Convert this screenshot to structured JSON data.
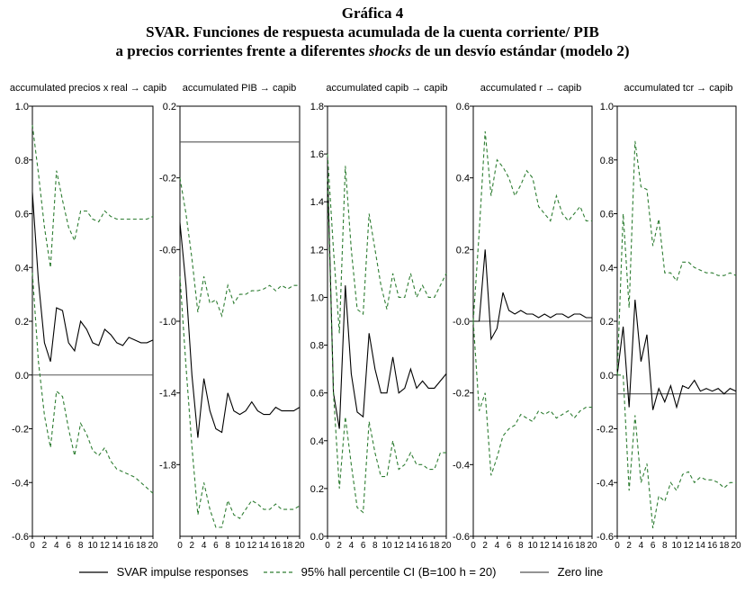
{
  "title": {
    "line1": "Gráfica 4",
    "line2": "SVAR. Funciones de respuesta acumulada de la cuenta corriente/ PIB",
    "line3_a": "a precios corrientes frente a diferentes ",
    "line3_italic": "shocks",
    "line3_b": " de un desvío estándar (modelo 2)"
  },
  "legend": {
    "irf": "SVAR impulse responses",
    "ci": "95%  hall percentile CI (B=100 h = 20)",
    "zero": "Zero line"
  },
  "colors": {
    "irf": "#000000",
    "ci": "#2e7d32",
    "zero": "#555555"
  },
  "chart_data": [
    {
      "type": "line",
      "title": "accumulated precios x real → capib",
      "x": [
        0,
        1,
        2,
        3,
        4,
        5,
        6,
        7,
        8,
        9,
        10,
        11,
        12,
        13,
        14,
        15,
        16,
        17,
        18,
        19,
        20
      ],
      "xticks": [
        0,
        2,
        4,
        6,
        8,
        10,
        12,
        14,
        16,
        18,
        20
      ],
      "ylim": [
        -0.6,
        1.0
      ],
      "yticks": [
        1.0,
        0.8,
        0.6,
        0.4,
        0.2,
        0.0,
        -0.2,
        -0.4,
        -0.6
      ],
      "ytick_labels": [
        "1.0",
        "0.8",
        "0.6",
        "0.4",
        "0.2",
        "0.0",
        "-0.2",
        "-0.4",
        "-0.6"
      ],
      "zero_line": 0.0,
      "series": [
        {
          "role": "irf",
          "values": [
            0.68,
            0.35,
            0.12,
            0.05,
            0.25,
            0.24,
            0.12,
            0.09,
            0.2,
            0.17,
            0.12,
            0.11,
            0.17,
            0.15,
            0.12,
            0.11,
            0.14,
            0.13,
            0.12,
            0.12,
            0.13
          ]
        },
        {
          "role": "ci_upper",
          "values": [
            0.93,
            0.75,
            0.55,
            0.4,
            0.76,
            0.65,
            0.55,
            0.5,
            0.61,
            0.61,
            0.58,
            0.57,
            0.61,
            0.59,
            0.58,
            0.58,
            0.58,
            0.58,
            0.58,
            0.58,
            0.59
          ]
        },
        {
          "role": "ci_lower",
          "values": [
            0.38,
            0.05,
            -0.15,
            -0.27,
            -0.06,
            -0.08,
            -0.2,
            -0.3,
            -0.18,
            -0.22,
            -0.28,
            -0.3,
            -0.27,
            -0.32,
            -0.35,
            -0.36,
            -0.37,
            -0.38,
            -0.4,
            -0.42,
            -0.44
          ]
        }
      ]
    },
    {
      "type": "line",
      "title": "accumulated PIB → capib",
      "x": [
        0,
        1,
        2,
        3,
        4,
        5,
        6,
        7,
        8,
        9,
        10,
        11,
        12,
        13,
        14,
        15,
        16,
        17,
        18,
        19,
        20
      ],
      "xticks": [
        0,
        2,
        4,
        6,
        8,
        10,
        12,
        14,
        16,
        18,
        20
      ],
      "ylim": [
        -2.2,
        0.2
      ],
      "yticks": [
        0.2,
        -0.2,
        -0.6,
        -1.0,
        -1.4,
        -1.8
      ],
      "ytick_labels": [
        "0.2",
        "-0.2",
        "-0.6",
        "-1.0",
        "-1.4",
        "-1.8"
      ],
      "zero_line": 0.0,
      "series": [
        {
          "role": "irf",
          "values": [
            -0.45,
            -0.8,
            -1.3,
            -1.65,
            -1.32,
            -1.5,
            -1.6,
            -1.62,
            -1.4,
            -1.5,
            -1.52,
            -1.5,
            -1.45,
            -1.5,
            -1.52,
            -1.52,
            -1.48,
            -1.5,
            -1.5,
            -1.5,
            -1.48
          ]
        },
        {
          "role": "ci_upper",
          "values": [
            -0.2,
            -0.4,
            -0.65,
            -0.95,
            -0.75,
            -0.9,
            -0.88,
            -0.97,
            -0.8,
            -0.9,
            -0.85,
            -0.85,
            -0.83,
            -0.83,
            -0.82,
            -0.8,
            -0.83,
            -0.8,
            -0.82,
            -0.8,
            -0.8
          ]
        },
        {
          "role": "ci_lower",
          "values": [
            -0.75,
            -1.25,
            -1.7,
            -2.08,
            -1.9,
            -2.05,
            -2.15,
            -2.15,
            -2.0,
            -2.08,
            -2.1,
            -2.05,
            -2.0,
            -2.02,
            -2.05,
            -2.05,
            -2.02,
            -2.05,
            -2.05,
            -2.05,
            -2.03
          ]
        }
      ]
    },
    {
      "type": "line",
      "title": "accumulated capib → capib",
      "x": [
        0,
        1,
        2,
        3,
        4,
        5,
        6,
        7,
        8,
        9,
        10,
        11,
        12,
        13,
        14,
        15,
        16,
        17,
        18,
        19,
        20
      ],
      "xticks": [
        0,
        2,
        4,
        6,
        8,
        10,
        12,
        14,
        16,
        18,
        20
      ],
      "ylim": [
        0.0,
        1.8
      ],
      "yticks": [
        1.8,
        1.6,
        1.4,
        1.2,
        1.0,
        0.8,
        0.6,
        0.4,
        0.2,
        0.0
      ],
      "ytick_labels": [
        "1.8",
        "1.6",
        "1.4",
        "1.2",
        "1.0",
        "0.8",
        "0.6",
        "0.4",
        "0.2",
        "0.0"
      ],
      "series": [
        {
          "role": "irf",
          "values": [
            1.55,
            0.6,
            0.45,
            1.05,
            0.68,
            0.52,
            0.5,
            0.85,
            0.7,
            0.6,
            0.6,
            0.75,
            0.6,
            0.62,
            0.7,
            0.62,
            0.65,
            0.62,
            0.62,
            0.65,
            0.68
          ]
        },
        {
          "role": "ci_upper",
          "values": [
            1.6,
            1.2,
            0.85,
            1.55,
            1.2,
            0.95,
            0.93,
            1.35,
            1.2,
            1.05,
            0.95,
            1.1,
            1.0,
            1.0,
            1.1,
            1.0,
            1.05,
            1.0,
            1.0,
            1.05,
            1.1
          ]
        },
        {
          "role": "ci_lower",
          "values": [
            1.5,
            0.6,
            0.2,
            0.5,
            0.3,
            0.12,
            0.1,
            0.48,
            0.35,
            0.25,
            0.25,
            0.4,
            0.28,
            0.3,
            0.35,
            0.3,
            0.3,
            0.28,
            0.28,
            0.35,
            0.35
          ]
        }
      ]
    },
    {
      "type": "line",
      "title": "accumulated r → capib",
      "x": [
        0,
        1,
        2,
        3,
        4,
        5,
        6,
        7,
        8,
        9,
        10,
        11,
        12,
        13,
        14,
        15,
        16,
        17,
        18,
        19,
        20
      ],
      "xticks": [
        0,
        2,
        4,
        6,
        8,
        10,
        12,
        14,
        16,
        18,
        20
      ],
      "ylim": [
        -0.6,
        0.6
      ],
      "yticks": [
        0.6,
        0.4,
        0.2,
        0.0,
        -0.2,
        -0.4,
        -0.6
      ],
      "ytick_labels": [
        "0.6",
        "0.4",
        "0.2",
        "-0.0",
        "-0.2",
        "-0.4",
        "-0.6"
      ],
      "zero_line": 0.0,
      "series": [
        {
          "role": "irf",
          "values": [
            0.0,
            0.0,
            0.2,
            -0.05,
            -0.02,
            0.08,
            0.03,
            0.02,
            0.03,
            0.02,
            0.02,
            0.01,
            0.02,
            0.01,
            0.02,
            0.02,
            0.01,
            0.02,
            0.02,
            0.01,
            0.01
          ]
        },
        {
          "role": "ci_upper",
          "values": [
            0.0,
            0.25,
            0.53,
            0.35,
            0.45,
            0.43,
            0.4,
            0.35,
            0.38,
            0.42,
            0.4,
            0.32,
            0.3,
            0.28,
            0.35,
            0.3,
            0.28,
            0.3,
            0.32,
            0.28,
            0.28
          ]
        },
        {
          "role": "ci_lower",
          "values": [
            0.0,
            -0.25,
            -0.2,
            -0.43,
            -0.38,
            -0.32,
            -0.3,
            -0.29,
            -0.26,
            -0.27,
            -0.28,
            -0.25,
            -0.26,
            -0.25,
            -0.27,
            -0.26,
            -0.25,
            -0.27,
            -0.25,
            -0.24,
            -0.24
          ]
        }
      ]
    },
    {
      "type": "line",
      "title": "accumulated tcr → capib",
      "x": [
        0,
        1,
        2,
        3,
        4,
        5,
        6,
        7,
        8,
        9,
        10,
        11,
        12,
        13,
        14,
        15,
        16,
        17,
        18,
        19,
        20
      ],
      "xticks": [
        0,
        2,
        4,
        6,
        8,
        10,
        12,
        14,
        16,
        18,
        20
      ],
      "ylim": [
        -0.6,
        1.0
      ],
      "yticks": [
        1.0,
        0.8,
        0.6,
        0.4,
        0.2,
        0.0,
        -0.2,
        -0.4,
        -0.6
      ],
      "ytick_labels": [
        "1.0",
        "0.8",
        "0.6",
        "0.4",
        "0.2",
        "0.0",
        "-0.2",
        "-0.4",
        "-0.6"
      ],
      "zero_line": -0.07,
      "series": [
        {
          "role": "irf",
          "values": [
            0.0,
            0.18,
            -0.12,
            0.28,
            0.05,
            0.15,
            -0.13,
            -0.05,
            -0.1,
            -0.04,
            -0.12,
            -0.04,
            -0.05,
            -0.02,
            -0.06,
            -0.05,
            -0.06,
            -0.05,
            -0.07,
            -0.05,
            -0.06
          ]
        },
        {
          "role": "ci_upper",
          "values": [
            0.0,
            0.6,
            0.25,
            0.87,
            0.7,
            0.69,
            0.48,
            0.58,
            0.38,
            0.38,
            0.35,
            0.42,
            0.42,
            0.4,
            0.39,
            0.38,
            0.38,
            0.37,
            0.37,
            0.38,
            0.37
          ]
        },
        {
          "role": "ci_lower",
          "values": [
            0.0,
            0.0,
            -0.43,
            -0.15,
            -0.4,
            -0.33,
            -0.57,
            -0.45,
            -0.47,
            -0.4,
            -0.43,
            -0.37,
            -0.36,
            -0.4,
            -0.38,
            -0.39,
            -0.39,
            -0.4,
            -0.42,
            -0.4,
            -0.4
          ]
        }
      ]
    }
  ]
}
